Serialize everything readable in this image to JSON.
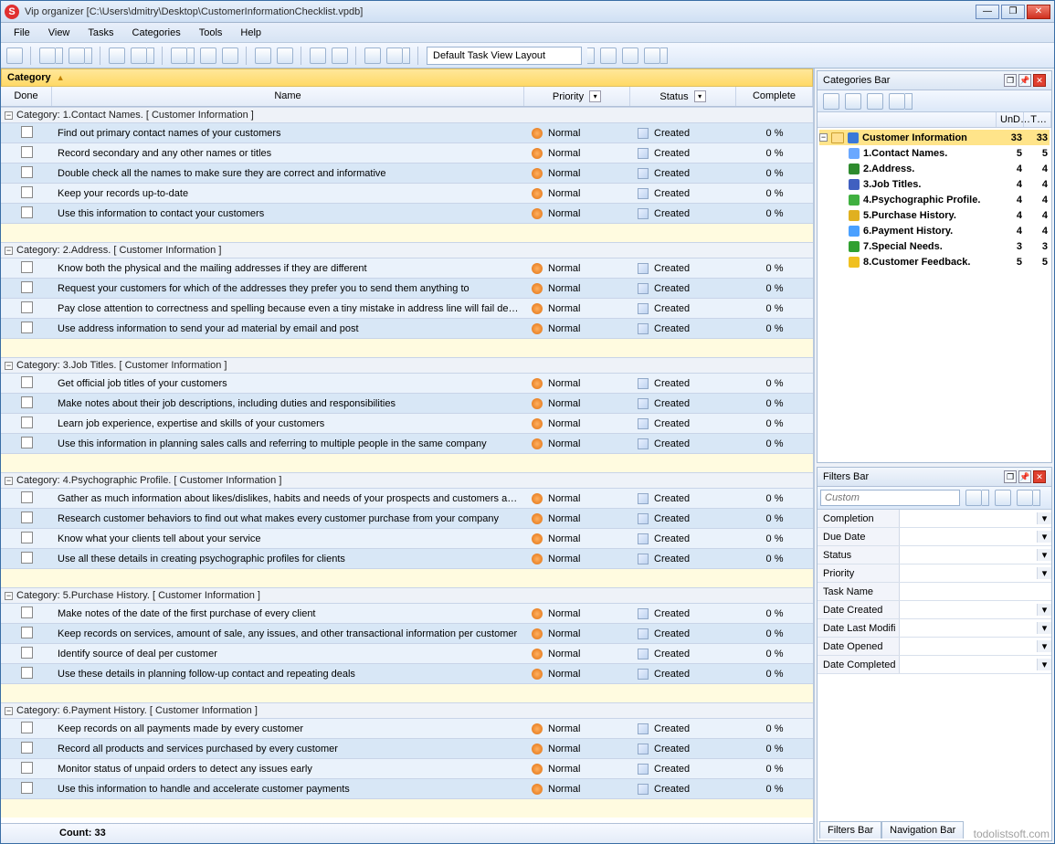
{
  "window": {
    "title": "Vip organizer [C:\\Users\\dmitry\\Desktop\\CustomerInformationChecklist.vpdb]",
    "app_icon_letter": "S"
  },
  "menu": [
    "File",
    "View",
    "Tasks",
    "Categories",
    "Tools",
    "Help"
  ],
  "toolbar": {
    "layout_label": "Default Task View Layout"
  },
  "grid": {
    "group_field": "Category",
    "columns": {
      "done": "Done",
      "name": "Name",
      "priority": "Priority",
      "status": "Status",
      "complete": "Complete"
    },
    "priority_default": "Normal",
    "status_default": "Created",
    "complete_default": "0 %",
    "groups": [
      {
        "title": "Category: 1.Contact Names.    [ Customer Information ]",
        "tasks": [
          "Find out primary contact names of your customers",
          "Record secondary and any other names or titles",
          "Double check all the names to make sure they are correct and informative",
          "Keep your records up-to-date",
          "Use this information to contact your customers"
        ]
      },
      {
        "title": "Category: 2.Address.    [ Customer Information ]",
        "tasks": [
          "Know both the physical and the mailing addresses if they are different",
          "Request your customers for which of the addresses they prefer you to send them anything to",
          "Pay close attention to correctness and spelling because even a tiny mistake in address line will fail delivery of your",
          "Use address information to send your ad material by email and post"
        ]
      },
      {
        "title": "Category: 3.Job Titles.    [ Customer Information ]",
        "tasks": [
          "Get official job titles of your customers",
          "Make notes about their job descriptions, including duties and responsibilities",
          "Learn job experience, expertise and skills of your customers",
          "Use this information in planning sales calls and referring to multiple people in the same company"
        ]
      },
      {
        "title": "Category: 4.Psychographic Profile.    [ Customer Information ]",
        "tasks": [
          "Gather as much information about likes/dislikes, habits and needs of your prospects and customers as possible",
          "Research customer behaviors to find out what makes every customer purchase from your company",
          "Know what your clients tell about your service",
          "Use all these details in creating psychographic profiles for clients"
        ]
      },
      {
        "title": "Category: 5.Purchase History.    [ Customer Information ]",
        "tasks": [
          "Make notes of the date of the first purchase of every client",
          "Keep records on services, amount of sale, any issues, and other transactional information per customer",
          "Identify source of deal per customer",
          "Use these details in planning follow-up contact and repeating deals"
        ]
      },
      {
        "title": "Category: 6.Payment History.    [ Customer Information ]",
        "tasks": [
          "Keep records on all payments made by every customer",
          "Record all products and services purchased by every customer",
          "Monitor status of unpaid orders to detect any issues early",
          "Use this information to handle and accelerate customer payments"
        ]
      }
    ],
    "footer_count": "Count:  33"
  },
  "categories_bar": {
    "title": "Categories Bar",
    "header_cols": [
      "",
      "UnD…",
      "T…"
    ],
    "root": {
      "name": "Customer Information",
      "n1": "33",
      "n2": "33"
    },
    "children": [
      {
        "icon": "#6aa8ff",
        "name": "1.Contact Names.",
        "n1": "5",
        "n2": "5"
      },
      {
        "icon": "#2e8b2e",
        "name": "2.Address.",
        "n1": "4",
        "n2": "4"
      },
      {
        "icon": "#4060c0",
        "name": "3.Job Titles.",
        "n1": "4",
        "n2": "4"
      },
      {
        "icon": "#40b040",
        "name": "4.Psychographic Profile.",
        "n1": "4",
        "n2": "4"
      },
      {
        "icon": "#e0b020",
        "name": "5.Purchase History.",
        "n1": "4",
        "n2": "4"
      },
      {
        "icon": "#4aa0ff",
        "name": "6.Payment History.",
        "n1": "4",
        "n2": "4"
      },
      {
        "icon": "#30a030",
        "name": "7.Special Needs.",
        "n1": "3",
        "n2": "3"
      },
      {
        "icon": "#f0c020",
        "name": "8.Customer Feedback.",
        "n1": "5",
        "n2": "5"
      }
    ]
  },
  "filters_bar": {
    "title": "Filters Bar",
    "placeholder": "Custom",
    "rows": [
      {
        "label": "Completion",
        "dd": true
      },
      {
        "label": "Due Date",
        "dd": true
      },
      {
        "label": "Status",
        "dd": true
      },
      {
        "label": "Priority",
        "dd": true
      },
      {
        "label": "Task Name",
        "dd": false
      },
      {
        "label": "Date Created",
        "dd": true
      },
      {
        "label": "Date Last Modifi",
        "dd": true
      },
      {
        "label": "Date Opened",
        "dd": true
      },
      {
        "label": "Date Completed",
        "dd": true
      }
    ],
    "tabs": [
      "Filters Bar",
      "Navigation Bar"
    ]
  },
  "watermark": "todolistsoft.com"
}
